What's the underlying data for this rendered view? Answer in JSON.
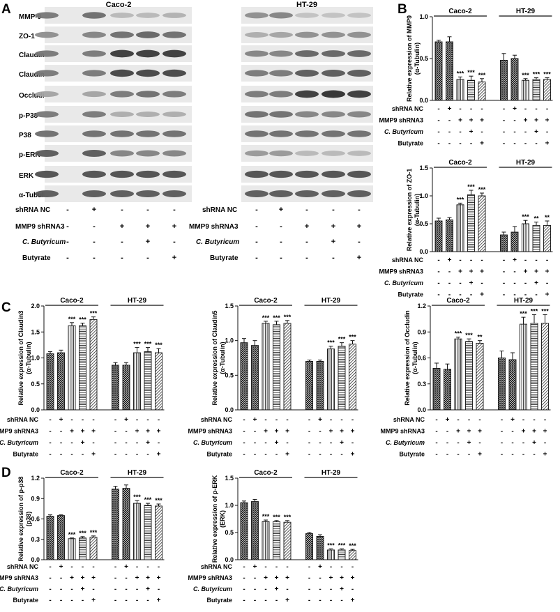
{
  "panels": {
    "A": "A",
    "B": "B",
    "C": "C",
    "D": "D"
  },
  "cell_lines": [
    "Caco-2",
    "HT-29"
  ],
  "treatment_rows": [
    {
      "label": "shRNA NC",
      "italic": false,
      "signs": [
        "-",
        "+",
        "-",
        "-",
        "-"
      ]
    },
    {
      "label": "MMP9 shRNA3",
      "italic": false,
      "signs": [
        "-",
        "-",
        "+",
        "+",
        "+"
      ]
    },
    {
      "label": "C. Butyricum",
      "italic": true,
      "signs": [
        "-",
        "-",
        "-",
        "+",
        "-"
      ]
    },
    {
      "label": "Butyrate",
      "italic": false,
      "signs": [
        "-",
        "-",
        "-",
        "-",
        "+"
      ]
    }
  ],
  "blots": {
    "labels": [
      "MMP-9",
      "ZO-1",
      "Claudin3",
      "Claudin5",
      "Occludin",
      "p-P38",
      "P38",
      "p-ERK",
      "ERK",
      "α-Tubulin"
    ],
    "intensity": {
      "caco": [
        [
          0.55,
          0.6,
          0.25,
          0.25,
          0.28
        ],
        [
          0.45,
          0.5,
          0.6,
          0.65,
          0.6
        ],
        [
          0.55,
          0.55,
          0.85,
          0.85,
          0.85
        ],
        [
          0.55,
          0.55,
          0.8,
          0.8,
          0.8
        ],
        [
          0.35,
          0.35,
          0.55,
          0.6,
          0.55
        ],
        [
          0.55,
          0.55,
          0.3,
          0.3,
          0.3
        ],
        [
          0.6,
          0.6,
          0.6,
          0.6,
          0.6
        ],
        [
          0.7,
          0.7,
          0.5,
          0.5,
          0.5
        ],
        [
          0.75,
          0.75,
          0.75,
          0.75,
          0.75
        ],
        [
          0.7,
          0.7,
          0.7,
          0.7,
          0.7
        ]
      ],
      "ht": [
        [
          0.45,
          0.5,
          0.2,
          0.2,
          0.2
        ],
        [
          0.3,
          0.35,
          0.45,
          0.45,
          0.45
        ],
        [
          0.5,
          0.5,
          0.65,
          0.65,
          0.65
        ],
        [
          0.55,
          0.55,
          0.7,
          0.7,
          0.7
        ],
        [
          0.55,
          0.55,
          0.85,
          0.9,
          0.85
        ],
        [
          0.6,
          0.6,
          0.5,
          0.5,
          0.5
        ],
        [
          0.6,
          0.6,
          0.6,
          0.6,
          0.6
        ],
        [
          0.4,
          0.4,
          0.25,
          0.25,
          0.25
        ],
        [
          0.75,
          0.75,
          0.75,
          0.75,
          0.75
        ],
        [
          0.7,
          0.7,
          0.7,
          0.7,
          0.7
        ]
      ]
    }
  },
  "chart_data": [
    {
      "type": "bar",
      "id": "mmp9",
      "ylabel": "Relative expression of MMP9",
      "ylabel2": "(α-Tubulin)",
      "ylim": [
        0,
        1.0
      ],
      "yticks": [
        "0.0",
        "0.5",
        "1.0"
      ],
      "ytick_values": [
        0,
        0.5,
        1.0
      ],
      "groups": [
        "Caco-2",
        "HT-29"
      ],
      "values": [
        [
          0.7,
          0.7,
          0.25,
          0.24,
          0.22
        ],
        [
          0.48,
          0.5,
          0.24,
          0.25,
          0.25
        ]
      ],
      "errors": [
        [
          0.02,
          0.06,
          0.03,
          0.05,
          0.04
        ],
        [
          0.08,
          0.04,
          0.02,
          0.02,
          0.02
        ]
      ],
      "stars": [
        [
          "",
          "",
          "***",
          "***",
          "***"
        ],
        [
          "",
          "",
          "***",
          "***",
          "***"
        ]
      ]
    },
    {
      "type": "bar",
      "id": "zo1",
      "ylabel": "Relative expression of ZO-1",
      "ylabel2": "(α-Tubulin)",
      "ylim": [
        0,
        1.5
      ],
      "yticks": [
        "0.0",
        "0.5",
        "1.0",
        "1.5"
      ],
      "ytick_values": [
        0,
        0.5,
        1.0,
        1.5
      ],
      "groups": [
        "Caco-2",
        "HT-29"
      ],
      "values": [
        [
          0.55,
          0.57,
          0.84,
          1.02,
          1.0
        ],
        [
          0.3,
          0.35,
          0.5,
          0.47,
          0.47
        ]
      ],
      "errors": [
        [
          0.05,
          0.04,
          0.03,
          0.08,
          0.05
        ],
        [
          0.05,
          0.1,
          0.06,
          0.06,
          0.08
        ]
      ],
      "stars": [
        [
          "",
          "",
          "***",
          "***",
          "***"
        ],
        [
          "",
          "",
          "***",
          "**",
          "**"
        ]
      ]
    },
    {
      "type": "bar",
      "id": "claudin3",
      "ylabel": "Relative expression of Claudin3",
      "ylabel2": "(α-Tubulin)",
      "ylim": [
        0,
        2.0
      ],
      "yticks": [
        "0.0",
        "0.5",
        "1.0",
        "1.5",
        "2.0"
      ],
      "ytick_values": [
        0,
        0.5,
        1.0,
        1.5,
        2.0
      ],
      "groups": [
        "Caco-2",
        "HT-29"
      ],
      "values": [
        [
          1.08,
          1.1,
          1.62,
          1.62,
          1.74
        ],
        [
          0.86,
          0.86,
          1.1,
          1.12,
          1.1
        ]
      ],
      "errors": [
        [
          0.04,
          0.05,
          0.06,
          0.05,
          0.05
        ],
        [
          0.05,
          0.05,
          0.1,
          0.08,
          0.08
        ]
      ],
      "stars": [
        [
          "",
          "",
          "***",
          "***",
          "***"
        ],
        [
          "",
          "",
          "***",
          "***",
          "***"
        ]
      ]
    },
    {
      "type": "bar",
      "id": "claudin5",
      "ylabel": "Relative expression of Claudin5",
      "ylabel2": "(α-Tubulin)",
      "ylim": [
        0,
        1.5
      ],
      "yticks": [
        "0.0",
        "0.5",
        "1.0",
        "1.5"
      ],
      "ytick_values": [
        0,
        0.5,
        1.0,
        1.5
      ],
      "groups": [
        "Caco-2",
        "HT-29"
      ],
      "values": [
        [
          0.97,
          0.93,
          1.25,
          1.23,
          1.25
        ],
        [
          0.7,
          0.7,
          0.88,
          0.92,
          0.95
        ]
      ],
      "errors": [
        [
          0.06,
          0.07,
          0.03,
          0.05,
          0.04
        ],
        [
          0.02,
          0.02,
          0.04,
          0.05,
          0.05
        ]
      ],
      "stars": [
        [
          "",
          "",
          "***",
          "***",
          "***"
        ],
        [
          "",
          "",
          "***",
          "***",
          "***"
        ]
      ]
    },
    {
      "type": "bar",
      "id": "occludin",
      "ylabel": "Relative expression of Occludin",
      "ylabel2": "(α-Tubulin)",
      "ylim": [
        0,
        1.2
      ],
      "yticks": [
        "0.0",
        "0.3",
        "0.6",
        "0.9",
        "1.2"
      ],
      "ytick_values": [
        0,
        0.3,
        0.6,
        0.9,
        1.2
      ],
      "groups": [
        "Caco-2",
        "HT-29"
      ],
      "values": [
        [
          0.48,
          0.47,
          0.82,
          0.79,
          0.77
        ],
        [
          0.6,
          0.58,
          0.99,
          1.0,
          1.0
        ]
      ],
      "errors": [
        [
          0.06,
          0.06,
          0.02,
          0.03,
          0.03
        ],
        [
          0.08,
          0.08,
          0.08,
          0.1,
          0.1
        ]
      ],
      "stars": [
        [
          "",
          "",
          "***",
          "***",
          "**"
        ],
        [
          "",
          "",
          "***",
          "***",
          "***"
        ]
      ]
    },
    {
      "type": "bar",
      "id": "pp38",
      "ylabel": "Relative expression of p-p38",
      "ylabel2": "(p38)",
      "ylim": [
        0,
        1.2
      ],
      "yticks": [
        "0.0",
        "0.3",
        "0.6",
        "0.9",
        "1.2"
      ],
      "ytick_values": [
        0,
        0.3,
        0.6,
        0.9,
        1.2
      ],
      "groups": [
        "Caco-2",
        "HT-29"
      ],
      "values": [
        [
          0.64,
          0.65,
          0.31,
          0.32,
          0.33
        ],
        [
          1.04,
          1.05,
          0.83,
          0.8,
          0.79
        ]
      ],
      "errors": [
        [
          0.02,
          0.01,
          0.01,
          0.02,
          0.02
        ],
        [
          0.04,
          0.05,
          0.04,
          0.03,
          0.03
        ]
      ],
      "stars": [
        [
          "",
          "",
          "***",
          "***",
          "***"
        ],
        [
          "",
          "",
          "***",
          "***",
          "***"
        ]
      ]
    },
    {
      "type": "bar",
      "id": "perk",
      "ylabel": "Relative expression of p-ERK",
      "ylabel2": "(ERK)",
      "ylim": [
        0,
        1.5
      ],
      "yticks": [
        "0.0",
        "0.5",
        "1.0",
        "1.5"
      ],
      "ytick_values": [
        0,
        0.5,
        1.0,
        1.5
      ],
      "groups": [
        "Caco-2",
        "HT-29"
      ],
      "values": [
        [
          1.05,
          1.07,
          0.7,
          0.7,
          0.69
        ],
        [
          0.48,
          0.43,
          0.18,
          0.18,
          0.17
        ]
      ],
      "errors": [
        [
          0.03,
          0.04,
          0.03,
          0.02,
          0.03
        ],
        [
          0.02,
          0.03,
          0.02,
          0.02,
          0.02
        ]
      ],
      "stars": [
        [
          "",
          "",
          "***",
          "***",
          "***"
        ],
        [
          "",
          "",
          "***",
          "***",
          "***"
        ]
      ]
    }
  ]
}
